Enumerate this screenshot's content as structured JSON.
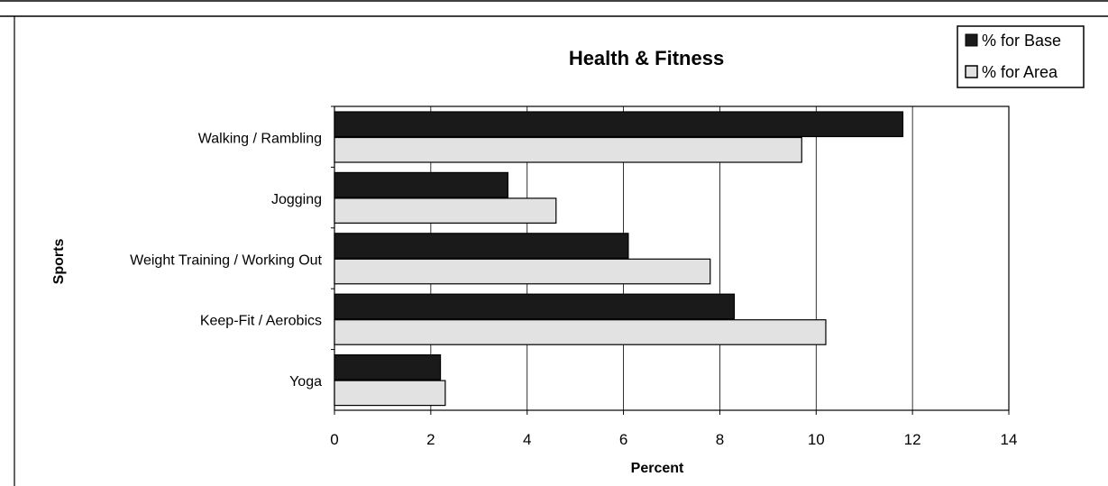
{
  "chart_data": {
    "type": "bar",
    "orientation": "horizontal",
    "title": "Health & Fitness",
    "xlabel": "Percent",
    "ylabel": "Sports",
    "xlim": [
      0,
      14
    ],
    "xticks": [
      0,
      2,
      4,
      6,
      8,
      10,
      12,
      14
    ],
    "grid": true,
    "legend_position": "top-right",
    "categories": [
      "Walking / Rambling",
      "Jogging",
      "Weight Training / Working Out",
      "Keep-Fit / Aerobics",
      "Yoga"
    ],
    "series": [
      {
        "name": "% for Base",
        "color": "#1a1a1a",
        "values": [
          11.8,
          3.6,
          6.1,
          8.3,
          2.2
        ]
      },
      {
        "name": "% for Area",
        "color": "#e2e2e2",
        "values": [
          9.7,
          4.6,
          7.8,
          10.2,
          2.3
        ]
      }
    ]
  }
}
